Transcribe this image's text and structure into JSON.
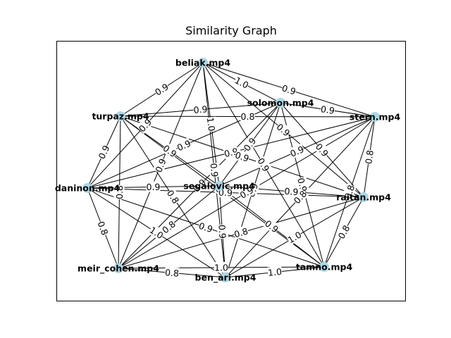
{
  "title": "Similarity Graph",
  "colors": {
    "node": "#add8e6",
    "edge": "#000000",
    "frame": "#000000"
  },
  "nodes": [
    {
      "id": "beliak",
      "label": "beliak.mp4"
    },
    {
      "id": "solomon",
      "label": "solomon.mp4"
    },
    {
      "id": "stern",
      "label": "stern.mp4"
    },
    {
      "id": "turpaz",
      "label": "turpaz.mp4"
    },
    {
      "id": "daninon",
      "label": "daninon.mp4"
    },
    {
      "id": "segalovic",
      "label": "segalovic.mp4"
    },
    {
      "id": "raitan",
      "label": "raitan.mp4"
    },
    {
      "id": "meir_cohen",
      "label": "meir_cohen.mp4"
    },
    {
      "id": "tamno",
      "label": "tamno.mp4"
    },
    {
      "id": "ben_ari",
      "label": "ben_ari.mp4"
    }
  ],
  "edges": [
    {
      "a": "beliak",
      "b": "solomon",
      "w": "1.0"
    },
    {
      "a": "beliak",
      "b": "stern",
      "w": "0.9"
    },
    {
      "a": "beliak",
      "b": "turpaz",
      "w": "0.9"
    },
    {
      "a": "beliak",
      "b": "daninon",
      "w": "0.9"
    },
    {
      "a": "beliak",
      "b": "segalovic",
      "w": "1.0"
    },
    {
      "a": "beliak",
      "b": "raitan",
      "w": "0.9"
    },
    {
      "a": "beliak",
      "b": "meir_cohen",
      "w": "0.9"
    },
    {
      "a": "beliak",
      "b": "tamno",
      "w": "0.9"
    },
    {
      "a": "beliak",
      "b": "ben_ari",
      "w": "0.9"
    },
    {
      "a": "solomon",
      "b": "stern",
      "w": "0.9"
    },
    {
      "a": "solomon",
      "b": "turpaz",
      "w": "0.9"
    },
    {
      "a": "solomon",
      "b": "daninon",
      "w": "0.9"
    },
    {
      "a": "solomon",
      "b": "segalovic",
      "w": "0.9"
    },
    {
      "a": "solomon",
      "b": "raitan",
      "w": "0.9"
    },
    {
      "a": "solomon",
      "b": "meir_cohen",
      "w": "0.9"
    },
    {
      "a": "solomon",
      "b": "tamno",
      "w": "0.9"
    },
    {
      "a": "solomon",
      "b": "ben_ari",
      "w": "0.9"
    },
    {
      "a": "stern",
      "b": "turpaz",
      "w": "0.8"
    },
    {
      "a": "stern",
      "b": "daninon",
      "w": "0.9"
    },
    {
      "a": "stern",
      "b": "segalovic",
      "w": "0.9"
    },
    {
      "a": "stern",
      "b": "raitan",
      "w": "0.8"
    },
    {
      "a": "stern",
      "b": "meir_cohen",
      "w": "0.9"
    },
    {
      "a": "stern",
      "b": "tamno",
      "w": "0.8"
    },
    {
      "a": "stern",
      "b": "ben_ari",
      "w": "0.8"
    },
    {
      "a": "turpaz",
      "b": "daninon",
      "w": "0.9"
    },
    {
      "a": "turpaz",
      "b": "segalovic",
      "w": "0.9"
    },
    {
      "a": "turpaz",
      "b": "raitan",
      "w": "0.9"
    },
    {
      "a": "turpaz",
      "b": "meir_cohen",
      "w": "0.8"
    },
    {
      "a": "turpaz",
      "b": "tamno",
      "w": "0.9"
    },
    {
      "a": "turpaz",
      "b": "ben_ari",
      "w": "0.8"
    },
    {
      "a": "daninon",
      "b": "segalovic",
      "w": "0.9"
    },
    {
      "a": "daninon",
      "b": "raitan",
      "w": "0.9"
    },
    {
      "a": "daninon",
      "b": "meir_cohen",
      "w": "0.8"
    },
    {
      "a": "daninon",
      "b": "tamno",
      "w": "0.9"
    },
    {
      "a": "daninon",
      "b": "ben_ari",
      "w": "1.0"
    },
    {
      "a": "segalovic",
      "b": "raitan",
      "w": "0.9"
    },
    {
      "a": "segalovic",
      "b": "meir_cohen",
      "w": "0.8"
    },
    {
      "a": "segalovic",
      "b": "tamno",
      "w": "0.9"
    },
    {
      "a": "segalovic",
      "b": "ben_ari",
      "w": "0.9"
    },
    {
      "a": "raitan",
      "b": "meir_cohen",
      "w": "0.8"
    },
    {
      "a": "raitan",
      "b": "tamno",
      "w": "0.8"
    },
    {
      "a": "raitan",
      "b": "ben_ari",
      "w": "1.0"
    },
    {
      "a": "meir_cohen",
      "b": "tamno",
      "w": "1.0"
    },
    {
      "a": "meir_cohen",
      "b": "ben_ari",
      "w": "0.8"
    },
    {
      "a": "tamno",
      "b": "ben_ari",
      "w": "1.0"
    }
  ]
}
